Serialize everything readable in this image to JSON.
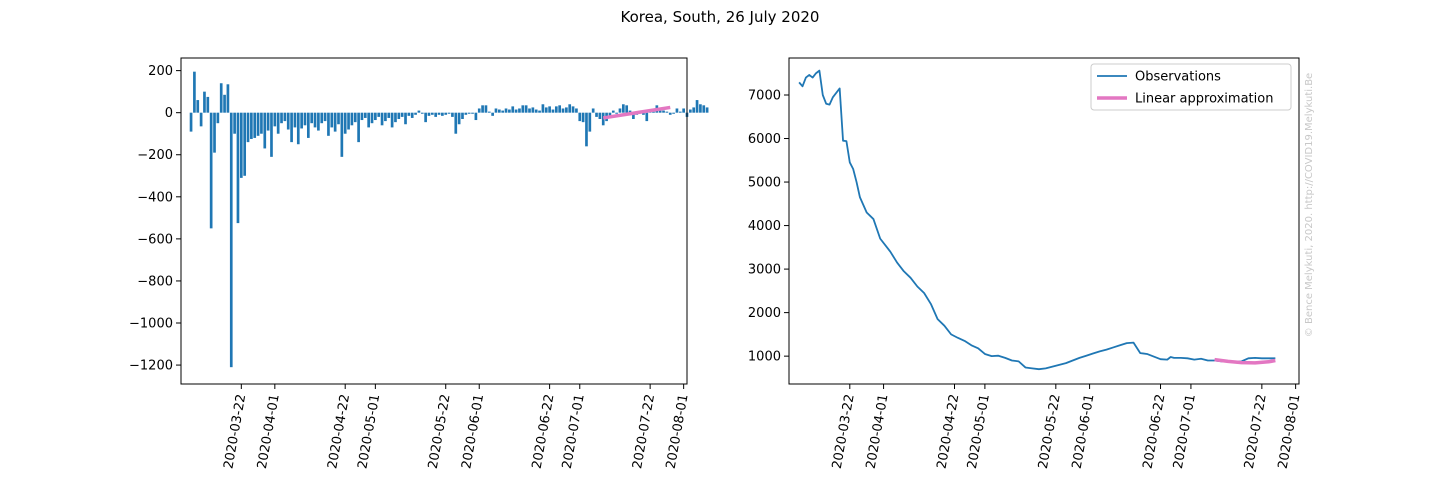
{
  "figure": {
    "title": "Korea, South, 26 July 2020",
    "watermark": "© Bence Melykuti, 2020. http://COVID19.Melykuti.Be"
  },
  "chart_data": [
    {
      "type": "bar",
      "title": "",
      "xlabel": "",
      "ylabel": "",
      "x_start": "2020-03-07",
      "xlim": [
        "2020-03-04",
        "2020-08-02"
      ],
      "ylim": [
        -1290,
        260
      ],
      "yticks": [
        200,
        0,
        -200,
        -400,
        -600,
        -800,
        -1000,
        -1200
      ],
      "ytick_labels": [
        "200",
        "0",
        "−200",
        "−400",
        "−600",
        "−800",
        "−1000",
        "−1200"
      ],
      "xticks": [
        "2020-03-22",
        "2020-04-01",
        "2020-04-22",
        "2020-05-01",
        "2020-05-22",
        "2020-06-01",
        "2020-06-22",
        "2020-07-01",
        "2020-07-22",
        "2020-08-01"
      ],
      "bar_color": "#1f77b4",
      "values": [
        -90,
        195,
        60,
        -65,
        100,
        75,
        -550,
        -190,
        -50,
        140,
        85,
        135,
        -1210,
        -100,
        -525,
        -310,
        -300,
        -140,
        -125,
        -120,
        -110,
        -100,
        -170,
        -85,
        -210,
        -65,
        -100,
        -50,
        -40,
        -80,
        -140,
        -70,
        -150,
        -75,
        -60,
        -120,
        -50,
        -70,
        -85,
        -50,
        -40,
        -110,
        -70,
        -90,
        -55,
        -210,
        -100,
        -80,
        -60,
        -45,
        -140,
        -35,
        -25,
        -70,
        -50,
        -35,
        -20,
        -60,
        -40,
        -25,
        -70,
        -45,
        -30,
        -20,
        -55,
        -15,
        -25,
        -10,
        10,
        -5,
        -45,
        -15,
        -10,
        -20,
        -10,
        -15,
        -10,
        -5,
        -20,
        -100,
        -55,
        -30,
        -10,
        -5,
        -5,
        -35,
        20,
        35,
        35,
        5,
        -15,
        20,
        15,
        10,
        20,
        15,
        30,
        15,
        20,
        35,
        35,
        20,
        25,
        15,
        10,
        40,
        25,
        30,
        15,
        30,
        35,
        20,
        25,
        40,
        30,
        20,
        -40,
        -45,
        -160,
        -90,
        20,
        -20,
        -30,
        -60,
        -40,
        -20,
        10,
        -5,
        20,
        40,
        35,
        10,
        -30,
        -10,
        10,
        -10,
        -40,
        5,
        5,
        35,
        10,
        10,
        5,
        -10,
        -5,
        20,
        5,
        20,
        -20,
        15,
        25,
        60,
        40,
        35,
        25
      ],
      "series": [
        {
          "name": "",
          "type": "line",
          "color": "#e377c2",
          "x": [
            "2020-07-08",
            "2020-07-28"
          ],
          "y": [
            -25,
            25
          ]
        }
      ]
    },
    {
      "type": "line",
      "title": "",
      "xlabel": "",
      "ylabel": "",
      "xlim": [
        "2020-03-04",
        "2020-08-02"
      ],
      "ylim": [
        360,
        7850
      ],
      "yticks": [
        1000,
        2000,
        3000,
        4000,
        5000,
        6000,
        7000
      ],
      "ytick_labels": [
        "1000",
        "2000",
        "3000",
        "4000",
        "5000",
        "6000",
        "7000"
      ],
      "xticks": [
        "2020-03-22",
        "2020-04-01",
        "2020-04-22",
        "2020-05-01",
        "2020-05-22",
        "2020-06-01",
        "2020-06-22",
        "2020-07-01",
        "2020-07-22",
        "2020-08-01"
      ],
      "legend": {
        "location": "upper right"
      },
      "series": [
        {
          "name": "Observations",
          "color": "#1f77b4",
          "x": [
            "2020-03-07",
            "2020-03-08",
            "2020-03-09",
            "2020-03-10",
            "2020-03-11",
            "2020-03-12",
            "2020-03-13",
            "2020-03-14",
            "2020-03-15",
            "2020-03-16",
            "2020-03-17",
            "2020-03-18",
            "2020-03-19",
            "2020-03-20",
            "2020-03-21",
            "2020-03-22",
            "2020-03-23",
            "2020-03-24",
            "2020-03-25",
            "2020-03-27",
            "2020-03-29",
            "2020-03-31",
            "2020-04-02",
            "2020-04-03",
            "2020-04-05",
            "2020-04-07",
            "2020-04-09",
            "2020-04-11",
            "2020-04-13",
            "2020-04-15",
            "2020-04-17",
            "2020-04-19",
            "2020-04-21",
            "2020-04-23",
            "2020-04-25",
            "2020-04-27",
            "2020-04-29",
            "2020-05-01",
            "2020-05-03",
            "2020-05-05",
            "2020-05-07",
            "2020-05-09",
            "2020-05-11",
            "2020-05-13",
            "2020-05-15",
            "2020-05-17",
            "2020-05-19",
            "2020-05-21",
            "2020-05-23",
            "2020-05-25",
            "2020-05-27",
            "2020-05-29",
            "2020-05-31",
            "2020-06-02",
            "2020-06-04",
            "2020-06-06",
            "2020-06-08",
            "2020-06-10",
            "2020-06-12",
            "2020-06-14",
            "2020-06-16",
            "2020-06-18",
            "2020-06-20",
            "2020-06-22",
            "2020-06-24",
            "2020-06-25",
            "2020-06-26",
            "2020-06-28",
            "2020-06-30",
            "2020-07-02",
            "2020-07-04",
            "2020-07-06",
            "2020-07-08",
            "2020-07-10",
            "2020-07-12",
            "2020-07-14",
            "2020-07-16",
            "2020-07-18",
            "2020-07-20",
            "2020-07-22",
            "2020-07-24",
            "2020-07-26"
          ],
          "y": [
            7290,
            7200,
            7400,
            7460,
            7400,
            7500,
            7560,
            7000,
            6800,
            6780,
            6950,
            7050,
            7150,
            5950,
            5940,
            5450,
            5300,
            5000,
            4650,
            4300,
            4150,
            3700,
            3500,
            3400,
            3150,
            2950,
            2800,
            2600,
            2450,
            2200,
            1850,
            1700,
            1500,
            1420,
            1350,
            1250,
            1180,
            1050,
            1000,
            1010,
            960,
            900,
            880,
            740,
            720,
            700,
            720,
            760,
            800,
            840,
            900,
            960,
            1010,
            1060,
            1110,
            1150,
            1200,
            1250,
            1300,
            1310,
            1070,
            1050,
            990,
            930,
            920,
            980,
            960,
            960,
            950,
            920,
            940,
            900,
            900,
            880,
            880,
            870,
            880,
            950,
            960,
            950,
            950,
            950
          ]
        },
        {
          "name": "Linear approximation",
          "color": "#e377c2",
          "x": [
            "2020-07-08",
            "2020-07-12",
            "2020-07-16",
            "2020-07-20",
            "2020-07-24",
            "2020-07-26"
          ],
          "y": [
            920,
            880,
            850,
            845,
            870,
            900
          ]
        }
      ]
    }
  ]
}
